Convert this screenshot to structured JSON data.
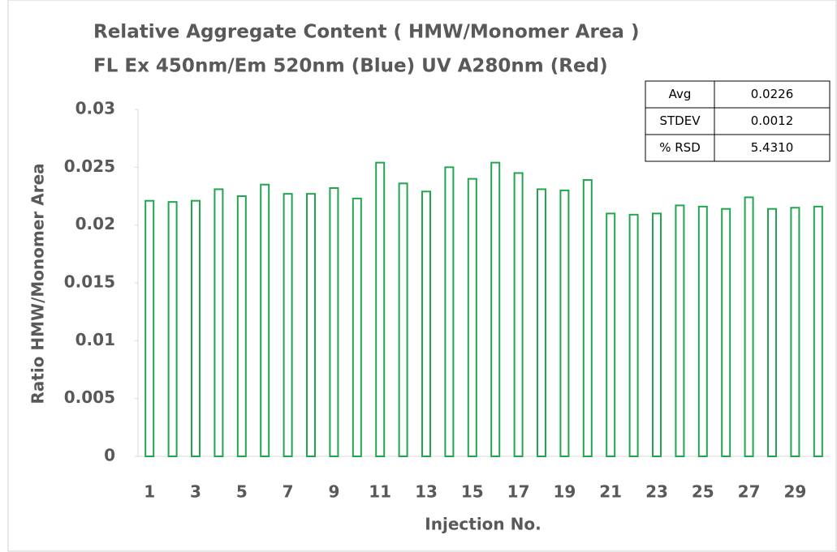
{
  "chart_data": {
    "type": "bar",
    "title": "Relative Aggregate Content ( HMW/Monomer Area )",
    "subtitle": "FL Ex 450nm/Em 520nm (Blue) UV A280nm (Red)",
    "x_label": "Injection No.",
    "y_label": "Ratio HMW/Monomer  Area",
    "categories": [
      "1",
      null,
      "3",
      null,
      "5",
      null,
      "7",
      null,
      "9",
      null,
      "11",
      null,
      "13",
      null,
      "15",
      null,
      "17",
      null,
      "19",
      null,
      "21",
      null,
      "23",
      null,
      "25",
      null,
      "27",
      null,
      "29",
      null
    ],
    "values": [
      0.0221,
      0.022,
      0.0221,
      0.0231,
      0.0225,
      0.0235,
      0.0227,
      0.0227,
      0.0232,
      0.0223,
      0.0254,
      0.0236,
      0.0229,
      0.025,
      0.024,
      0.0254,
      0.0245,
      0.0231,
      0.023,
      0.0239,
      0.021,
      0.0209,
      0.021,
      0.0217,
      0.0216,
      0.0214,
      0.0224,
      0.0214,
      0.0215,
      0.0216
    ],
    "color": "#21a650",
    "ylim": [
      0,
      0.03
    ],
    "yticks": [
      0,
      0.005,
      0.01,
      0.015,
      0.02,
      0.025,
      0.03
    ],
    "stats": {
      "names": [
        "Avg",
        "STDEV",
        "% RSD"
      ],
      "values": [
        0.0226,
        0.0012,
        5.431
      ],
      "value_labels": [
        "0.0226",
        "0.0012",
        "5.4310"
      ]
    }
  }
}
